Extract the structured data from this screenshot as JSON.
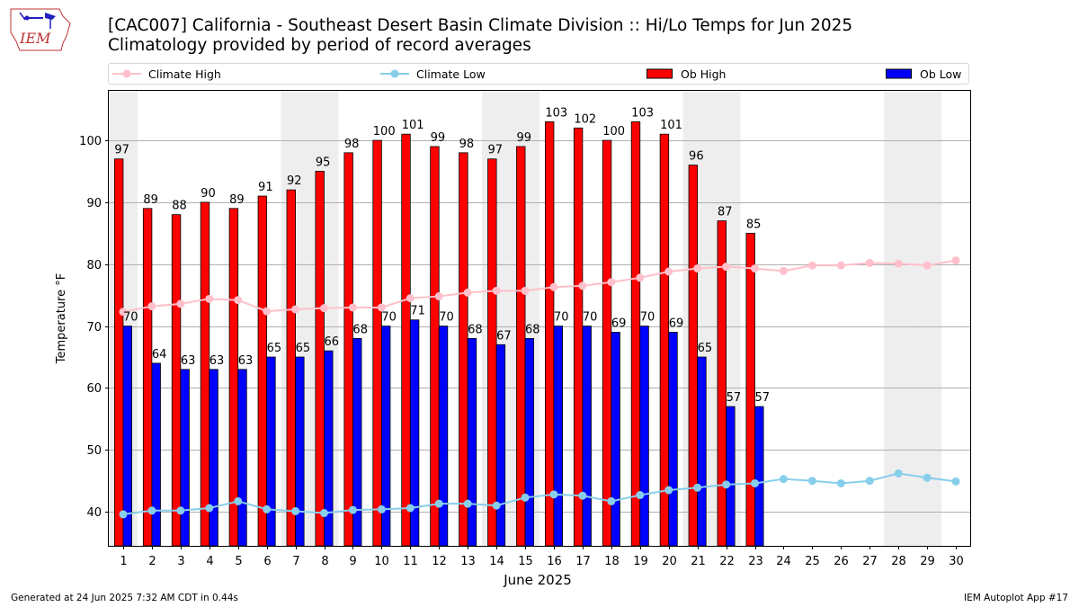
{
  "header": {
    "title_line1": "[CAC007] California - Southeast Desert Basin Climate Division :: Hi/Lo Temps for Jun 2025",
    "title_line2": "Climatology provided by period of record averages"
  },
  "logo": {
    "text": "IEM",
    "icon": "iowa-state-outline-logo"
  },
  "footer": {
    "left": "Generated at 24 Jun 2025 7:32 AM CDT in 0.44s",
    "right": "IEM Autoplot App #17"
  },
  "colors": {
    "ob_high": "#ff0000",
    "ob_low": "#0000ff",
    "climate_high": "#ffc0cb",
    "climate_low": "#87ceeb",
    "weekend_shade": "#eeeeee",
    "grid": "#b0b0b0"
  },
  "chart_data": {
    "type": "bar",
    "xlabel": "June 2025",
    "ylabel": "Temperature °F",
    "ylim": [
      34.5,
      108
    ],
    "yticks": [
      40,
      50,
      60,
      70,
      80,
      90,
      100
    ],
    "grid": "horizontal",
    "legend_placement": "top",
    "x": [
      1,
      2,
      3,
      4,
      5,
      6,
      7,
      8,
      9,
      10,
      11,
      12,
      13,
      14,
      15,
      16,
      17,
      18,
      19,
      20,
      21,
      22,
      23,
      24,
      25,
      26,
      27,
      28,
      29,
      30
    ],
    "shaded_days": [
      1,
      7,
      8,
      14,
      15,
      21,
      22,
      28,
      29
    ],
    "series": [
      {
        "name": "Climate High",
        "kind": "line",
        "color": "#ffc0cb",
        "values": [
          72.3,
          73.2,
          73.6,
          74.4,
          74.2,
          72.4,
          72.7,
          72.9,
          73.0,
          73.0,
          74.5,
          74.8,
          75.4,
          75.7,
          75.7,
          76.3,
          76.5,
          77.1,
          77.8,
          78.8,
          79.3,
          79.6,
          79.3,
          78.9,
          79.8,
          79.8,
          80.2,
          80.1,
          79.8,
          80.6
        ]
      },
      {
        "name": "Climate Low",
        "kind": "line",
        "color": "#87ceeb",
        "values": [
          39.6,
          40.2,
          40.2,
          40.6,
          41.7,
          40.4,
          40.1,
          39.8,
          40.3,
          40.4,
          40.6,
          41.3,
          41.3,
          41.0,
          42.3,
          42.8,
          42.6,
          41.7,
          42.7,
          43.5,
          43.9,
          44.4,
          44.6,
          45.3,
          45.0,
          44.6,
          45.0,
          46.2,
          45.5,
          44.9
        ]
      },
      {
        "name": "Ob High",
        "kind": "bar",
        "color": "#ff0000",
        "values": [
          97,
          89,
          88,
          90,
          89,
          91,
          92,
          95,
          98,
          100,
          101,
          99,
          98,
          97,
          99,
          103,
          102,
          100,
          103,
          101,
          96,
          87,
          85,
          null,
          null,
          null,
          null,
          null,
          null,
          null
        ]
      },
      {
        "name": "Ob Low",
        "kind": "bar",
        "color": "#0000ff",
        "values": [
          70,
          64,
          63,
          63,
          63,
          65,
          65,
          66,
          68,
          70,
          71,
          70,
          68,
          67,
          68,
          70,
          70,
          69,
          70,
          69,
          65,
          57,
          57,
          null,
          null,
          null,
          null,
          null,
          null,
          null
        ]
      }
    ]
  }
}
